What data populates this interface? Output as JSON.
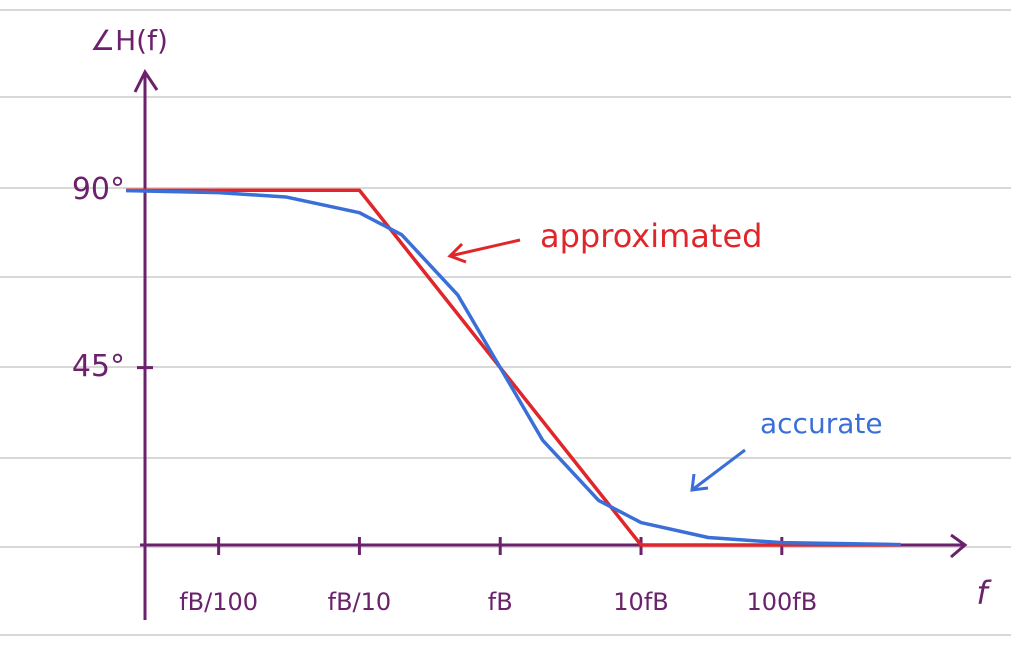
{
  "chart_data": {
    "type": "line",
    "y_label": "∠H(f)",
    "x_label": "f",
    "xscale": "log",
    "xlim": [
      0.003,
      2000
    ],
    "ylim": [
      0,
      120
    ],
    "xticks": [
      {
        "value": 0.01,
        "label": "fB/100"
      },
      {
        "value": 0.1,
        "label": "fB/10"
      },
      {
        "value": 1,
        "label": "fB"
      },
      {
        "value": 10,
        "label": "10fB"
      },
      {
        "value": 100,
        "label": "100fB"
      }
    ],
    "yticks": [
      {
        "value": 45,
        "label": "45°"
      },
      {
        "value": 90,
        "label": "90°"
      }
    ],
    "axis_color": "#6b216b",
    "series": [
      {
        "name": "approximated",
        "color": "#e0262a",
        "x": [
          0.0022,
          0.1,
          10,
          700
        ],
        "values": [
          90,
          90,
          0,
          0
        ]
      },
      {
        "name": "accurate",
        "color": "#3a6fd8",
        "x": [
          0.0022,
          0.01,
          0.03,
          0.1,
          0.2,
          0.5,
          1,
          2,
          5,
          10,
          30,
          100,
          700
        ],
        "values": [
          89.9,
          89.4,
          88.3,
          84.3,
          78.7,
          63.4,
          45,
          26.6,
          11.3,
          5.7,
          1.9,
          0.6,
          0.1
        ]
      }
    ]
  }
}
